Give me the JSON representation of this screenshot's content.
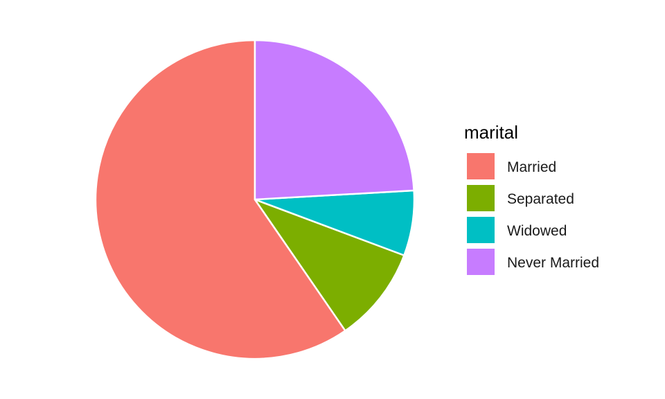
{
  "chart_data": {
    "type": "pie",
    "categories": [
      "Married",
      "Separated",
      "Widowed",
      "Never Married"
    ],
    "values": [
      59.6,
      9.7,
      6.6,
      24.1
    ],
    "colors": [
      "#F8766D",
      "#7CAE00",
      "#00BFC4",
      "#C77CFF"
    ],
    "legend": {
      "title": "marital",
      "placement": "right"
    },
    "start_angle_deg": 0,
    "direction": "counterclockwise",
    "slice_border_color": "#ffffff"
  }
}
